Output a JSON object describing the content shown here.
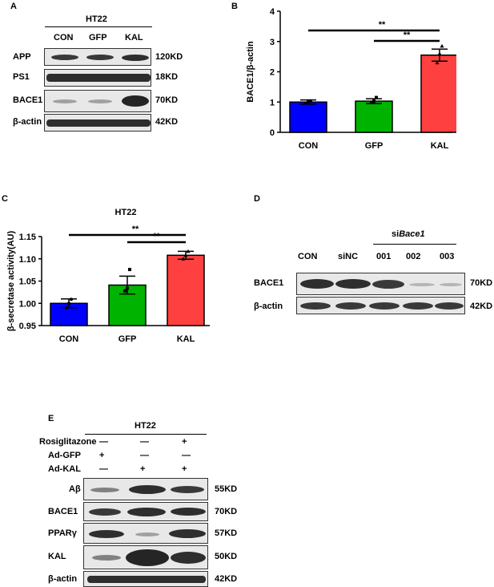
{
  "panelA": {
    "label": "A",
    "title": "HT22",
    "lanes": [
      "CON",
      "GFP",
      "KAL"
    ],
    "rows": [
      {
        "name": "APP",
        "kd": "120KD"
      },
      {
        "name": "PS1",
        "kd": "18KD"
      },
      {
        "name": "BACE1",
        "kd": "70KD"
      },
      {
        "name": "β-actin",
        "kd": "42KD"
      }
    ]
  },
  "panelB": {
    "label": "B",
    "sig1": "**",
    "sig2": "**"
  },
  "panelC": {
    "label": "C",
    "title": "HT22",
    "sig1": "**",
    "sig2": "**"
  },
  "panelD": {
    "label": "D",
    "group_prefix": "si",
    "group_gene": "Bace1",
    "lanes": [
      "CON",
      "siNC",
      "001",
      "002",
      "003"
    ],
    "rows": [
      {
        "name": "BACE1",
        "kd": "70KD"
      },
      {
        "name": "β-actin",
        "kd": "42KD"
      }
    ]
  },
  "panelE": {
    "label": "E",
    "title": "HT22",
    "treatments": [
      {
        "name": "Rosiglitazone",
        "marks": [
          "—",
          "—",
          "+"
        ]
      },
      {
        "name": "Ad-GFP",
        "marks": [
          "+",
          "—",
          "—"
        ]
      },
      {
        "name": "Ad-KAL",
        "marks": [
          "—",
          "+",
          "+"
        ]
      }
    ],
    "rows": [
      {
        "name": "Aβ",
        "kd": "55KD"
      },
      {
        "name": "BACE1",
        "kd": "70KD"
      },
      {
        "name": "PPARγ",
        "kd": "57KD"
      },
      {
        "name": "KAL",
        "kd": "50KD"
      },
      {
        "name": "β-actin",
        "kd": "42KD"
      }
    ]
  },
  "chart_data": [
    {
      "type": "bar",
      "panel": "B",
      "categories": [
        "CON",
        "GFP",
        "KAL"
      ],
      "values": [
        1.0,
        1.03,
        2.55
      ],
      "errors": [
        0.07,
        0.08,
        0.2
      ],
      "points": [
        [
          0.97,
          1.02,
          1.04
        ],
        [
          0.98,
          1.03,
          1.15
        ],
        [
          2.3,
          2.6,
          2.85
        ]
      ],
      "colors": [
        "#0000ff",
        "#00b300",
        "#ff4040"
      ],
      "ylabel": "BACE1/β-actin",
      "ylim": [
        0,
        4
      ],
      "yticks": [
        0,
        1,
        2,
        3,
        4
      ]
    },
    {
      "type": "bar",
      "panel": "C",
      "title": "HT22",
      "categories": [
        "CON",
        "GFP",
        "KAL"
      ],
      "values": [
        1.0,
        1.041,
        1.108
      ],
      "errors": [
        0.01,
        0.02,
        0.009
      ],
      "points": [
        [
          0.99,
          1.0,
          1.009
        ],
        [
          1.028,
          1.034,
          1.076
        ],
        [
          1.1,
          1.108,
          1.117
        ]
      ],
      "colors": [
        "#0000ff",
        "#00b300",
        "#ff4040"
      ],
      "ylabel": "β-secretase activity(AU)",
      "ylim": [
        0.95,
        1.15
      ],
      "yticks": [
        "0.95",
        "1.00",
        "1.05",
        "1.10",
        "1.15"
      ]
    }
  ]
}
